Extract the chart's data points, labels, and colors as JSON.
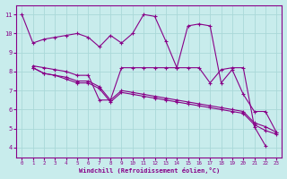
{
  "xlabel": "Windchill (Refroidissement éolien,°C)",
  "background_color": "#c8ecec",
  "grid_color": "#aad8d8",
  "line_color": "#880088",
  "xlim": [
    -0.5,
    23.5
  ],
  "ylim": [
    3.5,
    11.5
  ],
  "yticks": [
    4,
    5,
    6,
    7,
    8,
    9,
    10,
    11
  ],
  "xticks": [
    0,
    1,
    2,
    3,
    4,
    5,
    6,
    7,
    8,
    9,
    10,
    11,
    12,
    13,
    14,
    15,
    16,
    17,
    18,
    19,
    20,
    21,
    22,
    23
  ],
  "line1_x": [
    0,
    1,
    2,
    3,
    4,
    5,
    6,
    7,
    8,
    9,
    10,
    11,
    12,
    13,
    14,
    15,
    16,
    17,
    18,
    19,
    20,
    21,
    22,
    23
  ],
  "line1_y": [
    11.0,
    9.5,
    9.7,
    9.8,
    9.9,
    10.0,
    9.8,
    9.3,
    9.9,
    9.5,
    10.0,
    11.0,
    10.9,
    9.6,
    8.2,
    10.4,
    10.5,
    10.4,
    7.4,
    8.1,
    6.8,
    5.9,
    5.9,
    4.8
  ],
  "line2_x": [
    1,
    2,
    3,
    4,
    5,
    6,
    7,
    8,
    9,
    10,
    11,
    12,
    13,
    14,
    15,
    16,
    17,
    18,
    19,
    20,
    21,
    22
  ],
  "line2_y": [
    8.3,
    8.2,
    8.1,
    8.0,
    7.8,
    7.8,
    6.5,
    6.5,
    8.2,
    8.2,
    8.2,
    8.2,
    8.2,
    8.2,
    8.2,
    8.2,
    7.4,
    8.1,
    8.2,
    8.2,
    5.1,
    4.1
  ],
  "line3_x": [
    1,
    2,
    3,
    4,
    5,
    6,
    7,
    8,
    9,
    10,
    11,
    12,
    13,
    14,
    15,
    16,
    17,
    18,
    19,
    20,
    21,
    22,
    23
  ],
  "line3_y": [
    8.2,
    7.9,
    7.8,
    7.7,
    7.5,
    7.5,
    7.2,
    6.5,
    7.0,
    6.9,
    6.8,
    6.7,
    6.6,
    6.5,
    6.4,
    6.3,
    6.2,
    6.1,
    6.0,
    5.9,
    5.3,
    5.1,
    4.8
  ],
  "line4_x": [
    1,
    2,
    3,
    4,
    5,
    6,
    7,
    8,
    9,
    10,
    11,
    12,
    13,
    14,
    15,
    16,
    17,
    18,
    19,
    20,
    21,
    22,
    23
  ],
  "line4_y": [
    8.2,
    7.9,
    7.8,
    7.6,
    7.4,
    7.4,
    7.1,
    6.4,
    6.9,
    6.8,
    6.7,
    6.6,
    6.5,
    6.4,
    6.3,
    6.2,
    6.1,
    6.0,
    5.9,
    5.8,
    5.2,
    4.9,
    4.7
  ]
}
